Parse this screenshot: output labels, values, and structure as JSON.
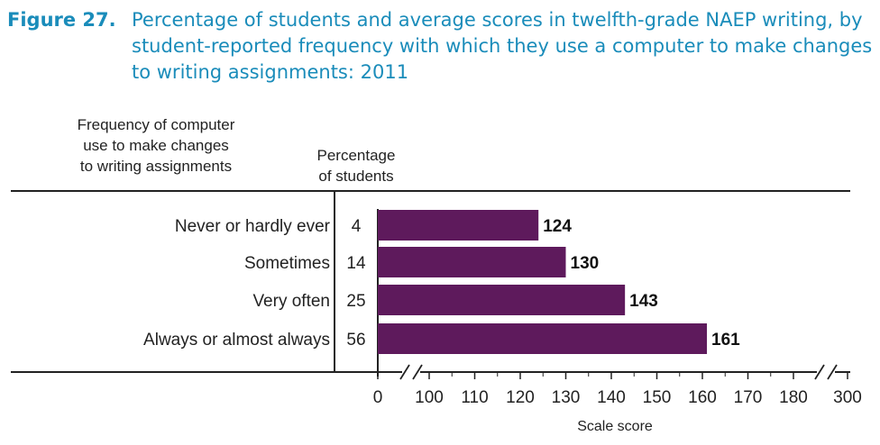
{
  "figure_label": "Figure 27.",
  "title": "Percentage of students and average scores in twelfth-grade NAEP writing, by student-reported frequency with which they use a computer to make changes to writing assignments: 2011",
  "column_headers": {
    "category": [
      "Frequency of computer",
      "use to make changes",
      "to writing assignments"
    ],
    "percentage": [
      "Percentage",
      "of students"
    ]
  },
  "colors": {
    "bar": "#5e1a5c",
    "title": "#1a8cba",
    "axis": "#222222"
  },
  "chart_data": {
    "type": "bar",
    "orientation": "horizontal",
    "categories": [
      "Never or hardly ever",
      "Sometimes",
      "Very often",
      "Always or almost always"
    ],
    "percentages": [
      4,
      14,
      25,
      56
    ],
    "values": [
      124,
      130,
      143,
      161
    ],
    "xlabel": "Scale score",
    "xticks": [
      0,
      100,
      110,
      120,
      130,
      140,
      150,
      160,
      170,
      180,
      300
    ],
    "axis_breaks": [
      [
        0,
        100
      ],
      [
        180,
        300
      ]
    ]
  }
}
